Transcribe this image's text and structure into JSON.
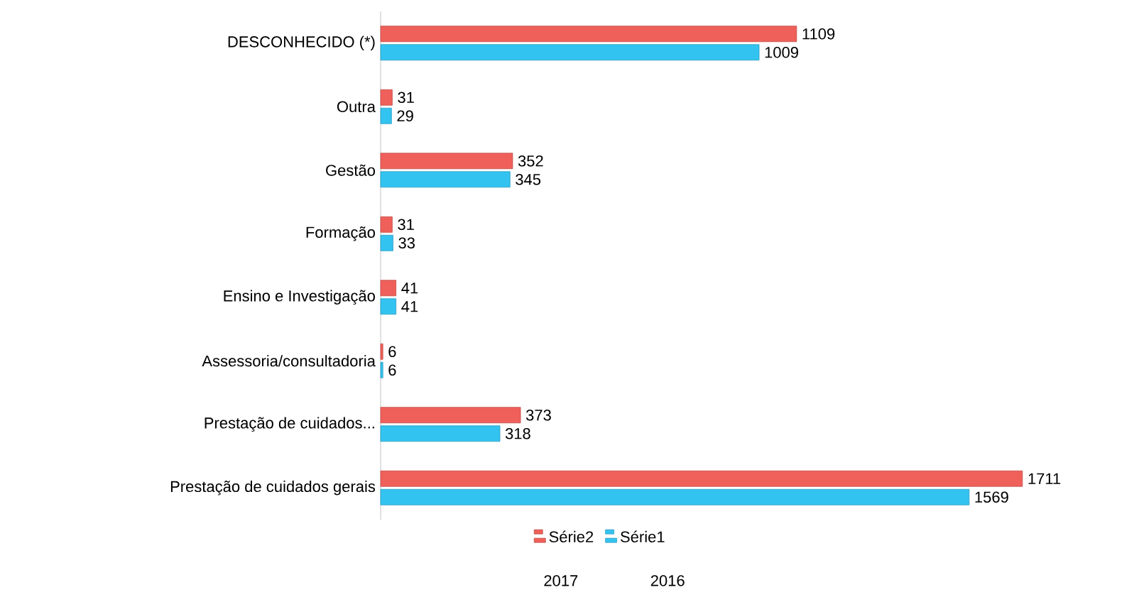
{
  "chart_data": {
    "type": "bar",
    "orientation": "horizontal",
    "categories": [
      "DESCONHECIDO (*)",
      "Outra",
      "Gestão",
      "Formação",
      "Ensino e Investigação",
      "Assessoria/consultadoria",
      "Prestação de cuidados...",
      "Prestação de cuidados gerais"
    ],
    "series": [
      {
        "name": "Série2",
        "color": "#f0605a",
        "values": [
          1109,
          31,
          352,
          31,
          41,
          6,
          373,
          1711
        ]
      },
      {
        "name": "Série1",
        "color": "#33c3f0",
        "values": [
          1009,
          29,
          345,
          33,
          41,
          6,
          318,
          1569
        ]
      }
    ],
    "data_labels": true,
    "legend": "bottom",
    "annotations": [
      "2017",
      "2016"
    ]
  }
}
